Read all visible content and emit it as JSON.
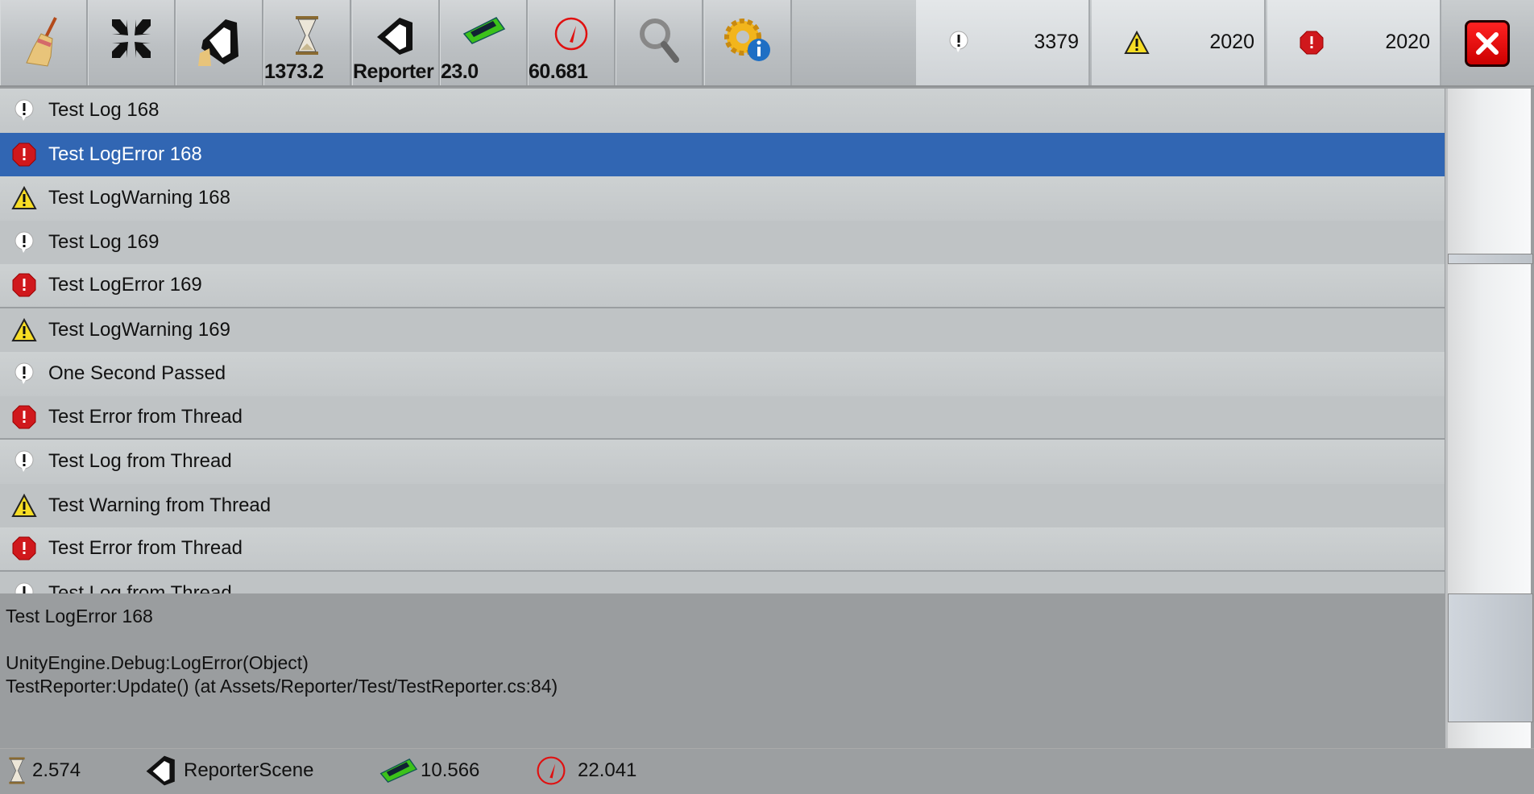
{
  "toolbar": {
    "buttons": [
      {
        "icon": "broom-icon",
        "label": "clear"
      },
      {
        "icon": "collapse-icon",
        "label": "collapse"
      },
      {
        "icon": "unity-broom-icon",
        "label": "clear-on-new-scene"
      },
      {
        "icon": "hourglass-icon",
        "value": "1373.2"
      },
      {
        "icon": "unity-icon",
        "value": "Reporter"
      },
      {
        "icon": "memory-icon",
        "value": "23.0"
      },
      {
        "icon": "fps-gauge-icon",
        "value": "60.681"
      },
      {
        "icon": "search-icon"
      },
      {
        "icon": "settings-info-icon"
      }
    ],
    "counters": {
      "log": "3379",
      "warning": "2020",
      "error": "2020"
    }
  },
  "colors": {
    "selected": "#3166b3",
    "error": "#d0181c",
    "warning": "#f7dd25",
    "close": "#e01010"
  },
  "logs": [
    {
      "type": "log",
      "text": "Test Log 168"
    },
    {
      "type": "error",
      "text": "Test LogError 168",
      "selected": true
    },
    {
      "type": "warning",
      "text": "Test LogWarning 168"
    },
    {
      "type": "log",
      "text": "Test Log 169"
    },
    {
      "type": "error",
      "text": "Test LogError 169"
    },
    {
      "type": "warning",
      "text": "Test LogWarning 169"
    },
    {
      "type": "log",
      "text": "One Second Passed"
    },
    {
      "type": "error",
      "text": "Test Error from Thread"
    },
    {
      "type": "log",
      "text": "Test Log from Thread"
    },
    {
      "type": "warning",
      "text": "Test Warning from Thread"
    },
    {
      "type": "error",
      "text": "Test Error from Thread"
    },
    {
      "type": "log",
      "text": "Test Log from Thread"
    }
  ],
  "detail": {
    "lines": [
      "Test LogError 168",
      "",
      "UnityEngine.Debug:LogError(Object)",
      "TestReporter:Update() (at Assets/Reporter/Test/TestReporter.cs:84)"
    ]
  },
  "footer": {
    "time": "2.574",
    "scene": "ReporterScene",
    "memory": "10.566",
    "fps": "22.041"
  }
}
